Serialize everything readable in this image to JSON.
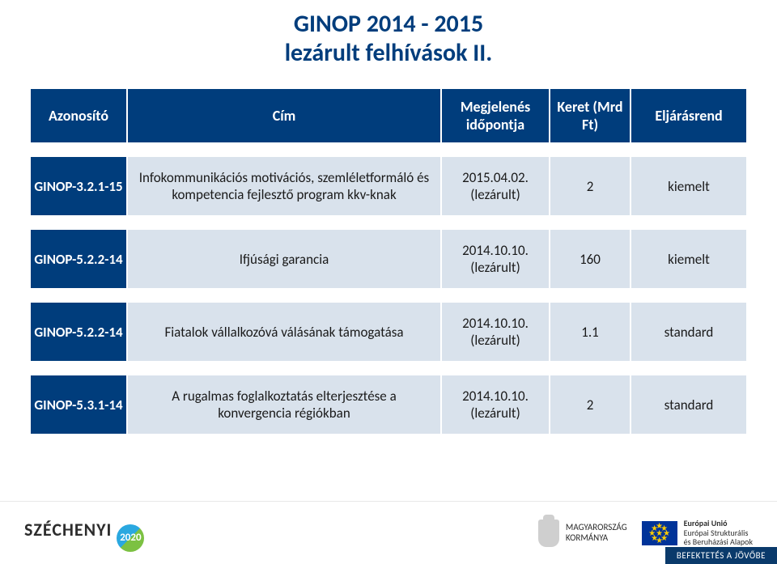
{
  "title_line1": "GINOP 2014 - 2015",
  "title_line2": "lezárult felhívások II.",
  "colors": {
    "brand_blue": "#003d7c",
    "row_bg": "#d9e2ec",
    "text_dark": "#1a1a1a",
    "white": "#ffffff"
  },
  "header": {
    "id": "Azonosító",
    "cim": "Cím",
    "date": "Megjelenés időpontja",
    "keret": "Keret (Mrd Ft)",
    "elj": "Eljárásrend"
  },
  "rows": [
    {
      "id": "GINOP-3.2.1-15",
      "cim": "Infokommunikációs motivációs, szemléletformáló és kompetencia fejlesztő program kkv-knak",
      "date": "2015.04.02. (lezárult)",
      "keret": "2",
      "elj": "kiemelt"
    },
    {
      "id": "GINOP-5.2.2-14",
      "cim": "Ifjúsági garancia",
      "date": "2014.10.10. (lezárult)",
      "keret": "160",
      "elj": "kiemelt"
    },
    {
      "id": "GINOP-5.2.2-14",
      "cim": "Fiatalok vállalkozóvá válásának támogatása",
      "date": "2014.10.10. (lezárult)",
      "keret": "1.1",
      "elj": "standard"
    },
    {
      "id": "GINOP-5.3.1-14",
      "cim": "A rugalmas foglalkoztatás elterjesztése a konvergencia régiókban",
      "date": "2014.10.10. (lezárult)",
      "keret": "2",
      "elj": "standard"
    }
  ],
  "footer": {
    "szechenyi": "SZÉCHENYI",
    "szechenyi_year": "2020",
    "kormanya_l1": "MAGYARORSZÁG",
    "kormanya_l2": "KORMÁNYA",
    "eu_l1": "Európai Unió",
    "eu_l2": "Európai Strukturális",
    "eu_l3": "és Beruházási Alapok",
    "slogan": "BEFEKTETÉS A JÖVŐBE"
  }
}
